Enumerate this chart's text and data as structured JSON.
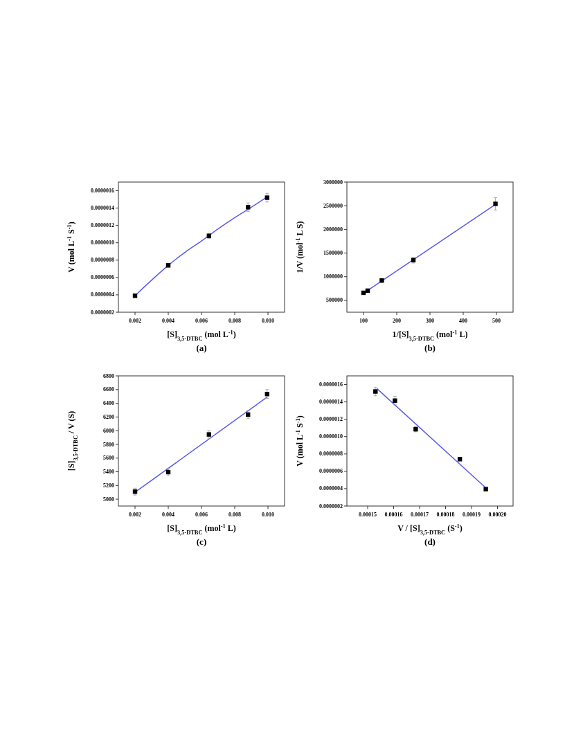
{
  "chart_data": [
    {
      "type": "scatter",
      "title": "(a)",
      "xlabel": "[S]$_{3,5-DTBC}$ (mol L$^{-1}$)",
      "ylabel": "V (mol L$^{-1}$ S$^{-1}$)",
      "xlim": [
        0.001,
        0.011
      ],
      "ylim": [
        2e-07,
        1.7e-06
      ],
      "xticks": [
        {
          "value": 0.002,
          "label": "0.002"
        },
        {
          "value": 0.004,
          "label": "0.004"
        },
        {
          "value": 0.006,
          "label": "0.006"
        },
        {
          "value": 0.008,
          "label": "0.008"
        },
        {
          "value": 0.01,
          "label": "0.010"
        }
      ],
      "yticks": [
        {
          "value": 2e-07,
          "label": "0.0000002"
        },
        {
          "value": 4e-07,
          "label": "0.0000004"
        },
        {
          "value": 6e-07,
          "label": "0.0000006"
        },
        {
          "value": 8e-07,
          "label": "0.0000008"
        },
        {
          "value": 1e-06,
          "label": "0.0000010"
        },
        {
          "value": 1.2e-06,
          "label": "0.0000012"
        },
        {
          "value": 1.4e-06,
          "label": "0.0000014"
        },
        {
          "value": 1.6e-06,
          "label": "0.0000016"
        }
      ],
      "grid": false,
      "marker": "square",
      "series": [
        {
          "color": "#000000",
          "x": [
            0.002,
            0.004,
            0.00645,
            0.0088,
            0.00995
          ],
          "values": [
            3.9e-07,
            7.4e-07,
            1.08e-06,
            1.41e-06,
            1.52e-06
          ],
          "errors": [
            2e-08,
            2e-08,
            3e-08,
            5e-08,
            5e-08
          ]
        },
        {
          "type": "line",
          "color": "#5a5af0",
          "marker": "none",
          "x": [
            0.002,
            0.003,
            0.004,
            0.005,
            0.006,
            0.007,
            0.008,
            0.009,
            0.00995
          ],
          "values": [
            3.9e-07,
            5.7e-07,
            7.4e-07,
            8.9e-07,
            1.02e-06,
            1.16e-06,
            1.29e-06,
            1.41e-06,
            1.53e-06
          ]
        }
      ]
    },
    {
      "type": "scatter",
      "title": "(b)",
      "xlabel": "1/[S]$_{3,5-DTBC}$ (mol$^{-1}$ L)",
      "ylabel": "1/V (mol$^{-1}$ L S)",
      "xlim": [
        50,
        550
      ],
      "ylim": [
        250000,
        3000000
      ],
      "xticks": [
        100,
        200,
        300,
        400,
        500
      ],
      "yticks": [
        500000,
        1000000,
        1500000,
        2000000,
        2500000,
        3000000
      ],
      "grid": false,
      "marker": "square",
      "series": [
        {
          "color": "#000000",
          "x": [
            100,
            112.5,
            155,
            250,
            497
          ],
          "values": [
            660000,
            705000,
            920000,
            1350000,
            2540000
          ],
          "errors": [
            20000,
            25000,
            40000,
            60000,
            130000
          ]
        },
        {
          "type": "line",
          "color": "#5a5af0",
          "marker": "none",
          "x": [
            100,
            500
          ],
          "values": [
            650000,
            2540000
          ]
        }
      ]
    },
    {
      "type": "scatter",
      "title": "(c)",
      "xlabel": "[S]$_{3,5-DTBC}$ (mol$^{-1}$ L)",
      "ylabel": "[S]$_{3,5-DTBC}$ / V (S)",
      "xlim": [
        0.001,
        0.011
      ],
      "ylim": [
        4900,
        6800
      ],
      "xticks": [
        {
          "value": 0.002,
          "label": "0.002"
        },
        {
          "value": 0.004,
          "label": "0.004"
        },
        {
          "value": 0.006,
          "label": "0.006"
        },
        {
          "value": 0.008,
          "label": "0.008"
        },
        {
          "value": 0.01,
          "label": "0.010"
        }
      ],
      "yticks": [
        5000,
        5200,
        5400,
        5600,
        5800,
        6000,
        6200,
        6400,
        6600,
        6800
      ],
      "grid": false,
      "marker": "square",
      "series": [
        {
          "color": "#000000",
          "x": [
            0.002,
            0.004,
            0.00645,
            0.0088,
            0.00995
          ],
          "values": [
            5110,
            5395,
            5945,
            6235,
            6535
          ],
          "errors": [
            50,
            55,
            55,
            60,
            65
          ]
        },
        {
          "type": "line",
          "color": "#5a5af0",
          "marker": "none",
          "x": [
            0.002,
            0.00995
          ],
          "values": [
            5100,
            6490
          ]
        }
      ]
    },
    {
      "type": "scatter",
      "title": "(d)",
      "xlabel": "V / [S]$_{3,5-DTBC}$ (S$^{-1}$)",
      "ylabel": "V (mol L$^{-1}$ S$^{-1}$)",
      "xlim": [
        0.000142,
        0.000206
      ],
      "ylim": [
        2e-07,
        1.7e-06
      ],
      "xticks": [
        {
          "value": 0.00015,
          "label": "0.00015"
        },
        {
          "value": 0.00016,
          "label": "0.00016"
        },
        {
          "value": 0.00017,
          "label": "0.00017"
        },
        {
          "value": 0.00018,
          "label": "0.00018"
        },
        {
          "value": 0.00019,
          "label": "0.00019"
        },
        {
          "value": 0.0002,
          "label": "0.00020"
        }
      ],
      "yticks": [
        {
          "value": 2e-07,
          "label": "0.0000002"
        },
        {
          "value": 4e-07,
          "label": "0.0000004"
        },
        {
          "value": 6e-07,
          "label": "0.0000006"
        },
        {
          "value": 8e-07,
          "label": "0.0000008"
        },
        {
          "value": 1e-06,
          "label": "0.0000010"
        },
        {
          "value": 1.2e-06,
          "label": "0.0000012"
        },
        {
          "value": 1.4e-06,
          "label": "0.0000014"
        },
        {
          "value": 1.6e-06,
          "label": "0.0000016"
        }
      ],
      "grid": false,
      "marker": "square",
      "series": [
        {
          "color": "#000000",
          "x": [
            0.000153,
            0.0001605,
            0.0001685,
            0.0001855,
            0.0001955
          ],
          "values": [
            1.52e-06,
            1.415e-06,
            1.085e-06,
            7.4e-07,
            3.95e-07
          ],
          "errors": [
            5e-08,
            5e-08,
            3e-08,
            2e-08,
            2e-08
          ]
        },
        {
          "type": "line",
          "color": "#5a5af0",
          "marker": "none",
          "x": [
            0.0001535,
            0.0001955
          ],
          "values": [
            1.555e-06,
            4.1e-07
          ]
        }
      ]
    }
  ]
}
